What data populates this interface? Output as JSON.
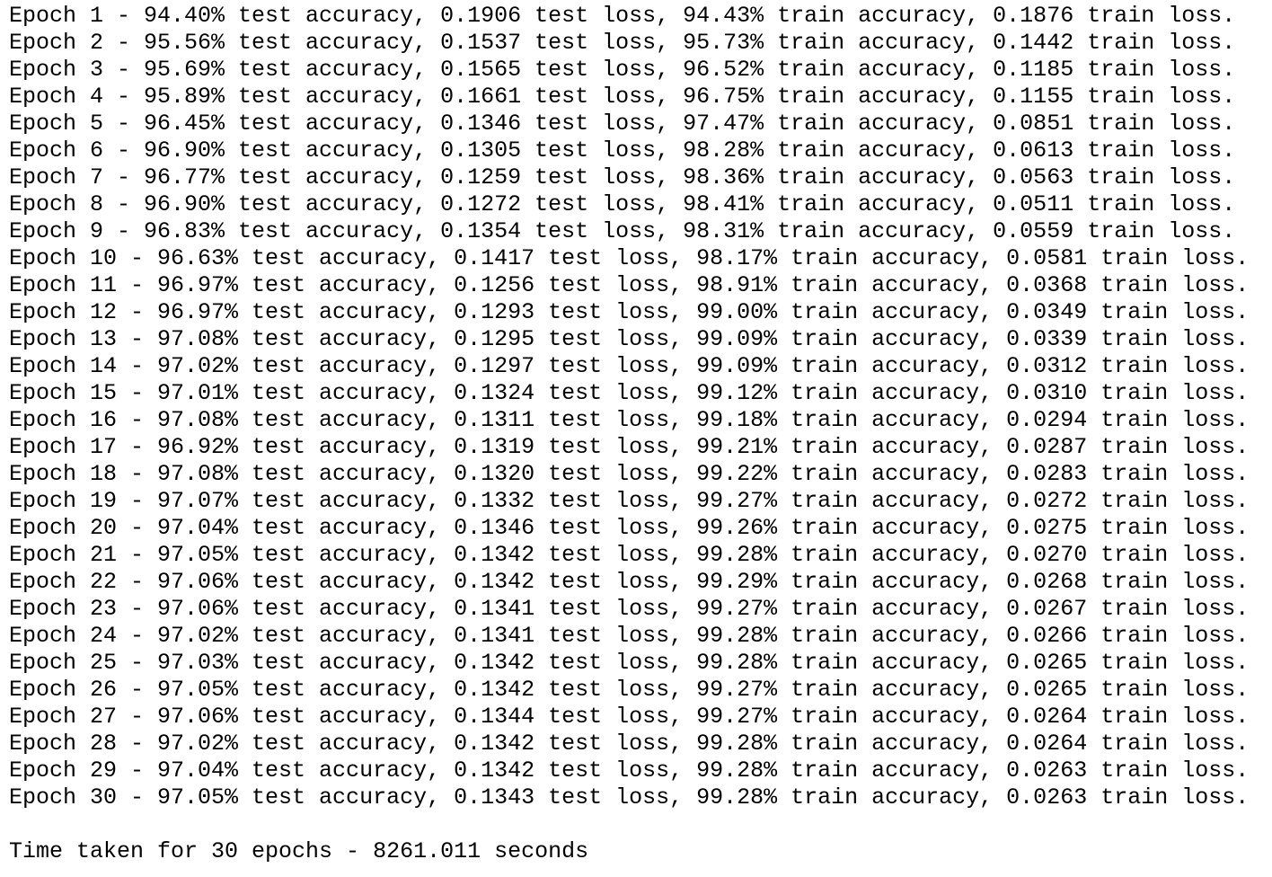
{
  "lines": [
    "Epoch 1 - 94.40% test accuracy, 0.1906 test loss, 94.43% train accuracy, 0.1876 train loss.",
    "Epoch 2 - 95.56% test accuracy, 0.1537 test loss, 95.73% train accuracy, 0.1442 train loss.",
    "Epoch 3 - 95.69% test accuracy, 0.1565 test loss, 96.52% train accuracy, 0.1185 train loss.",
    "Epoch 4 - 95.89% test accuracy, 0.1661 test loss, 96.75% train accuracy, 0.1155 train loss.",
    "Epoch 5 - 96.45% test accuracy, 0.1346 test loss, 97.47% train accuracy, 0.0851 train loss.",
    "Epoch 6 - 96.90% test accuracy, 0.1305 test loss, 98.28% train accuracy, 0.0613 train loss.",
    "Epoch 7 - 96.77% test accuracy, 0.1259 test loss, 98.36% train accuracy, 0.0563 train loss.",
    "Epoch 8 - 96.90% test accuracy, 0.1272 test loss, 98.41% train accuracy, 0.0511 train loss.",
    "Epoch 9 - 96.83% test accuracy, 0.1354 test loss, 98.31% train accuracy, 0.0559 train loss.",
    "Epoch 10 - 96.63% test accuracy, 0.1417 test loss, 98.17% train accuracy, 0.0581 train loss.",
    "Epoch 11 - 96.97% test accuracy, 0.1256 test loss, 98.91% train accuracy, 0.0368 train loss.",
    "Epoch 12 - 96.97% test accuracy, 0.1293 test loss, 99.00% train accuracy, 0.0349 train loss.",
    "Epoch 13 - 97.08% test accuracy, 0.1295 test loss, 99.09% train accuracy, 0.0339 train loss.",
    "Epoch 14 - 97.02% test accuracy, 0.1297 test loss, 99.09% train accuracy, 0.0312 train loss.",
    "Epoch 15 - 97.01% test accuracy, 0.1324 test loss, 99.12% train accuracy, 0.0310 train loss.",
    "Epoch 16 - 97.08% test accuracy, 0.1311 test loss, 99.18% train accuracy, 0.0294 train loss.",
    "Epoch 17 - 96.92% test accuracy, 0.1319 test loss, 99.21% train accuracy, 0.0287 train loss.",
    "Epoch 18 - 97.08% test accuracy, 0.1320 test loss, 99.22% train accuracy, 0.0283 train loss.",
    "Epoch 19 - 97.07% test accuracy, 0.1332 test loss, 99.27% train accuracy, 0.0272 train loss.",
    "Epoch 20 - 97.04% test accuracy, 0.1346 test loss, 99.26% train accuracy, 0.0275 train loss.",
    "Epoch 21 - 97.05% test accuracy, 0.1342 test loss, 99.28% train accuracy, 0.0270 train loss.",
    "Epoch 22 - 97.06% test accuracy, 0.1342 test loss, 99.29% train accuracy, 0.0268 train loss.",
    "Epoch 23 - 97.06% test accuracy, 0.1341 test loss, 99.27% train accuracy, 0.0267 train loss.",
    "Epoch 24 - 97.02% test accuracy, 0.1341 test loss, 99.28% train accuracy, 0.0266 train loss.",
    "Epoch 25 - 97.03% test accuracy, 0.1342 test loss, 99.28% train accuracy, 0.0265 train loss.",
    "Epoch 26 - 97.05% test accuracy, 0.1342 test loss, 99.27% train accuracy, 0.0265 train loss.",
    "Epoch 27 - 97.06% test accuracy, 0.1344 test loss, 99.27% train accuracy, 0.0264 train loss.",
    "Epoch 28 - 97.02% test accuracy, 0.1342 test loss, 99.28% train accuracy, 0.0264 train loss.",
    "Epoch 29 - 97.04% test accuracy, 0.1342 test loss, 99.28% train accuracy, 0.0263 train loss.",
    "Epoch 30 - 97.05% test accuracy, 0.1343 test loss, 99.28% train accuracy, 0.0263 train loss."
  ],
  "footer": "Time taken for 30 epochs - 8261.011 seconds"
}
